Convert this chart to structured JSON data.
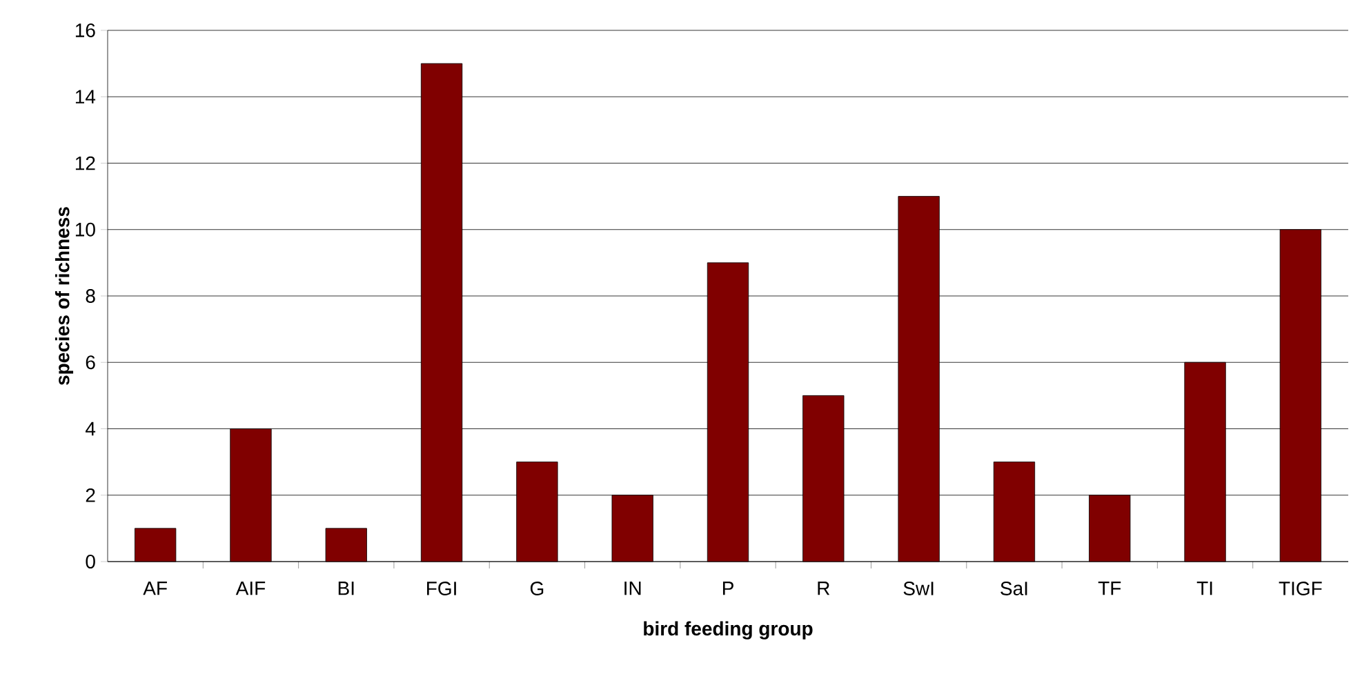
{
  "chart_data": {
    "type": "bar",
    "xlabel": "bird feeding group",
    "ylabel": "species of richness",
    "categories": [
      "AF",
      "AIF",
      "BI",
      "FGI",
      "G",
      "IN",
      "P",
      "R",
      "SwI",
      "SaI",
      "TF",
      "TI",
      "TIGF"
    ],
    "values": [
      1,
      4,
      1,
      15,
      3,
      2,
      9,
      5,
      11,
      3,
      2,
      6,
      10
    ],
    "color": "#800000",
    "ylim": [
      0,
      16
    ],
    "yticks": [
      0,
      2,
      4,
      6,
      8,
      10,
      12,
      14,
      16
    ],
    "grid": "y"
  }
}
